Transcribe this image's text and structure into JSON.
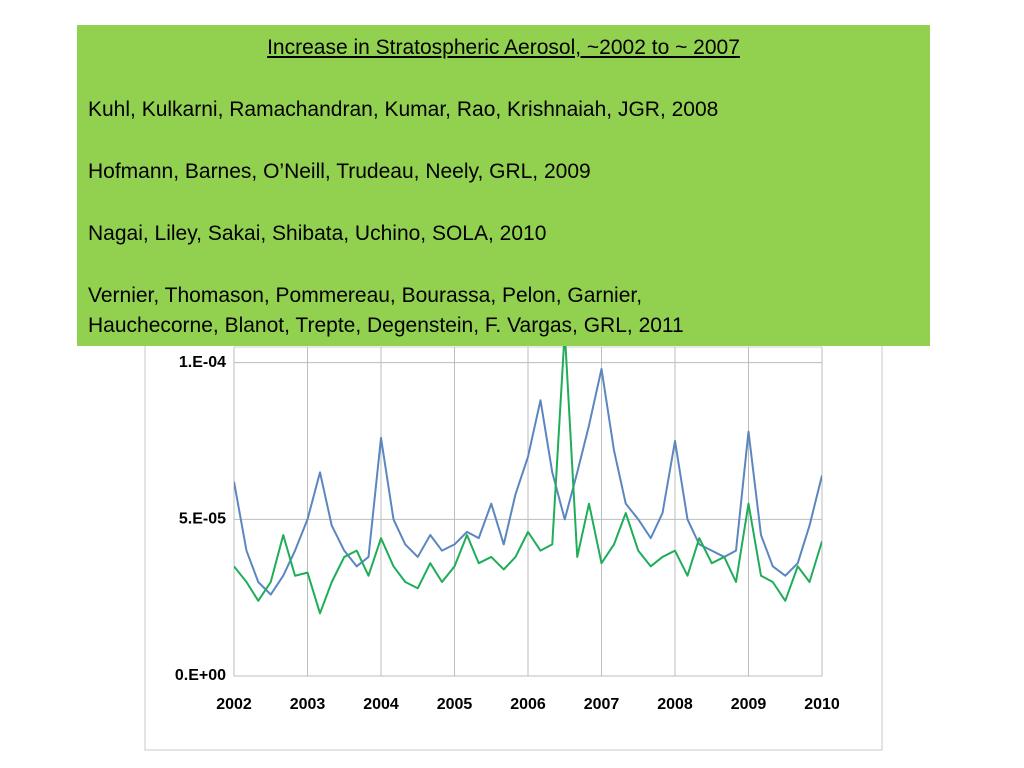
{
  "text_box": {
    "title": "Increase in Stratospheric Aerosol, ~2002  to  ~ 2007",
    "references": [
      "Kuhl, Kulkarni, Ramachandran, Kumar, Rao, Krishnaiah, JGR, 2008",
      "Hofmann, Barnes, O’Neill, Trudeau, Neely, GRL, 2009",
      "Nagai, Liley, Sakai, Shibata, Uchino, SOLA, 2010",
      [
        "Vernier, Thomason, Pommereau, Bourassa, Pelon, Garnier,",
        "Hauchecorne, Blanot, Trepte, Degenstein, F. Vargas, GRL, 2011"
      ]
    ]
  },
  "chart_data": {
    "type": "line",
    "x": [
      2002,
      2002.17,
      2002.33,
      2002.5,
      2002.67,
      2002.83,
      2003,
      2003.17,
      2003.33,
      2003.5,
      2003.67,
      2003.83,
      2004,
      2004.17,
      2004.33,
      2004.5,
      2004.67,
      2004.83,
      2005,
      2005.17,
      2005.33,
      2005.5,
      2005.67,
      2005.83,
      2006,
      2006.17,
      2006.33,
      2006.5,
      2006.67,
      2006.83,
      2007,
      2007.17,
      2007.33,
      2007.5,
      2007.67,
      2007.83,
      2008,
      2008.17,
      2008.33,
      2008.5,
      2008.67,
      2008.83,
      2009,
      2009.17,
      2009.33,
      2009.5,
      2009.67,
      2009.83,
      2010
    ],
    "series": [
      {
        "color": "#5b86c0",
        "values": [
          6.2e-05,
          4e-05,
          3e-05,
          2.6e-05,
          3.2e-05,
          4e-05,
          5e-05,
          6.5e-05,
          4.8e-05,
          4e-05,
          3.5e-05,
          3.8e-05,
          7.6e-05,
          5e-05,
          4.2e-05,
          3.8e-05,
          4.5e-05,
          4e-05,
          4.2e-05,
          4.6e-05,
          4.4e-05,
          5.5e-05,
          4.2e-05,
          5.8e-05,
          7e-05,
          8.8e-05,
          6.5e-05,
          5e-05,
          6.5e-05,
          8e-05,
          9.8e-05,
          7.2e-05,
          5.5e-05,
          5e-05,
          4.4e-05,
          5.2e-05,
          7.5e-05,
          5e-05,
          4.2e-05,
          4e-05,
          3.8e-05,
          4e-05,
          7.8e-05,
          4.5e-05,
          3.5e-05,
          3.2e-05,
          3.6e-05,
          4.8e-05,
          6.4e-05
        ]
      },
      {
        "color": "#1fad5a",
        "values": [
          3.5e-05,
          3e-05,
          2.4e-05,
          3e-05,
          4.5e-05,
          3.2e-05,
          3.3e-05,
          2e-05,
          3e-05,
          3.8e-05,
          4e-05,
          3.2e-05,
          4.4e-05,
          3.5e-05,
          3e-05,
          2.8e-05,
          3.6e-05,
          3e-05,
          3.5e-05,
          4.5e-05,
          3.6e-05,
          3.8e-05,
          3.4e-05,
          3.8e-05,
          4.6e-05,
          4e-05,
          4.2e-05,
          0.00011,
          3.8e-05,
          5.5e-05,
          3.6e-05,
          4.2e-05,
          5.2e-05,
          4e-05,
          3.5e-05,
          3.8e-05,
          4e-05,
          3.2e-05,
          4.4e-05,
          3.6e-05,
          3.8e-05,
          3e-05,
          5.5e-05,
          3.2e-05,
          3e-05,
          2.4e-05,
          3.5e-05,
          3e-05,
          4.3e-05
        ]
      }
    ],
    "xlim": [
      2002,
      2010
    ],
    "xticks": [
      2002,
      2003,
      2004,
      2005,
      2006,
      2007,
      2008,
      2009,
      2010
    ],
    "ylim": [
      0,
      0.000105
    ],
    "yticks": [
      {
        "value": 0,
        "label": "0.E+00"
      },
      {
        "value": 5e-05,
        "label": "5.E-05"
      },
      {
        "value": 0.0001,
        "label": "1.E-04"
      }
    ],
    "grid": true
  }
}
